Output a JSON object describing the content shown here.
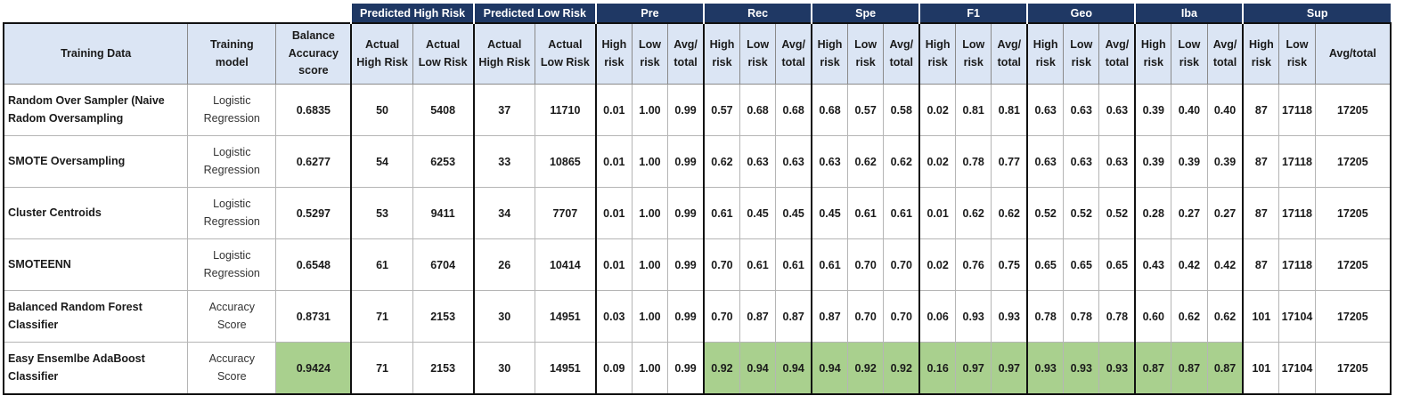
{
  "band": [
    {
      "label": "Predicted High Risk",
      "span": 2
    },
    {
      "label": "Predicted Low Risk",
      "span": 2
    },
    {
      "label": "Pre",
      "span": 3
    },
    {
      "label": "Rec",
      "span": 3
    },
    {
      "label": "Spe",
      "span": 3
    },
    {
      "label": "F1",
      "span": 3
    },
    {
      "label": "Geo",
      "span": 3
    },
    {
      "label": "Iba",
      "span": 3
    },
    {
      "label": "Sup",
      "span": 3
    }
  ],
  "headers": {
    "training_data": "Training Data",
    "training_model": [
      "Training",
      "model"
    ],
    "balance": [
      "Balance",
      "Accuracy",
      "score"
    ],
    "actual_high": [
      "Actual",
      "High Risk"
    ],
    "actual_low": [
      "Actual",
      "Low Risk"
    ],
    "high_risk": [
      "High",
      "risk"
    ],
    "low_risk": [
      "Low",
      "risk"
    ],
    "avg_total": [
      "Avg/",
      "total"
    ],
    "avg_total_sup": "Avg/total"
  },
  "highlight_color": "#a9d08e",
  "rows": [
    {
      "data": [
        "Random Over Sampler (Naive",
        "Radom Oversampling"
      ],
      "model": [
        "Logistic",
        "Regression"
      ],
      "score": "0.6835",
      "vals": [
        "50",
        "5408",
        "37",
        "11710",
        "0.01",
        "1.00",
        "0.99",
        "0.57",
        "0.68",
        "0.68",
        "0.68",
        "0.57",
        "0.58",
        "0.02",
        "0.81",
        "0.81",
        "0.63",
        "0.63",
        "0.63",
        "0.39",
        "0.40",
        "0.40",
        "87",
        "17118",
        "17205"
      ],
      "highlight": false
    },
    {
      "data": [
        "SMOTE Oversampling"
      ],
      "model": [
        "Logistic",
        "Regression"
      ],
      "score": "0.6277",
      "vals": [
        "54",
        "6253",
        "33",
        "10865",
        "0.01",
        "1.00",
        "0.99",
        "0.62",
        "0.63",
        "0.63",
        "0.63",
        "0.62",
        "0.62",
        "0.02",
        "0.78",
        "0.77",
        "0.63",
        "0.63",
        "0.63",
        "0.39",
        "0.39",
        "0.39",
        "87",
        "17118",
        "17205"
      ],
      "highlight": false
    },
    {
      "data": [
        "Cluster Centroids"
      ],
      "model": [
        "Logistic",
        "Regression"
      ],
      "score": "0.5297",
      "vals": [
        "53",
        "9411",
        "34",
        "7707",
        "0.01",
        "1.00",
        "0.99",
        "0.61",
        "0.45",
        "0.45",
        "0.45",
        "0.61",
        "0.61",
        "0.01",
        "0.62",
        "0.62",
        "0.52",
        "0.52",
        "0.52",
        "0.28",
        "0.27",
        "0.27",
        "87",
        "17118",
        "17205"
      ],
      "highlight": false
    },
    {
      "data": [
        "SMOTEENN"
      ],
      "model": [
        "Logistic",
        "Regression"
      ],
      "score": "0.6548",
      "vals": [
        "61",
        "6704",
        "26",
        "10414",
        "0.01",
        "1.00",
        "0.99",
        "0.70",
        "0.61",
        "0.61",
        "0.61",
        "0.70",
        "0.70",
        "0.02",
        "0.76",
        "0.75",
        "0.65",
        "0.65",
        "0.65",
        "0.43",
        "0.42",
        "0.42",
        "87",
        "17118",
        "17205"
      ],
      "highlight": false
    },
    {
      "data": [
        "Balanced Random Forest",
        "Classifier"
      ],
      "model": [
        "Accuracy",
        "Score"
      ],
      "score": "0.8731",
      "vals": [
        "71",
        "2153",
        "30",
        "14951",
        "0.03",
        "1.00",
        "0.99",
        "0.70",
        "0.87",
        "0.87",
        "0.87",
        "0.70",
        "0.70",
        "0.06",
        "0.93",
        "0.93",
        "0.78",
        "0.78",
        "0.78",
        "0.60",
        "0.62",
        "0.62",
        "101",
        "17104",
        "17205"
      ],
      "highlight": false
    },
    {
      "data": [
        "Easy Ensemlbe AdaBoost",
        "Classifier"
      ],
      "model": [
        "Accuracy",
        "Score"
      ],
      "score": "0.9424",
      "vals": [
        "71",
        "2153",
        "30",
        "14951",
        "0.09",
        "1.00",
        "0.99",
        "0.92",
        "0.94",
        "0.94",
        "0.94",
        "0.92",
        "0.92",
        "0.16",
        "0.97",
        "0.97",
        "0.93",
        "0.93",
        "0.93",
        "0.87",
        "0.87",
        "0.87",
        "101",
        "17104",
        "17205"
      ],
      "highlight": true
    }
  ]
}
